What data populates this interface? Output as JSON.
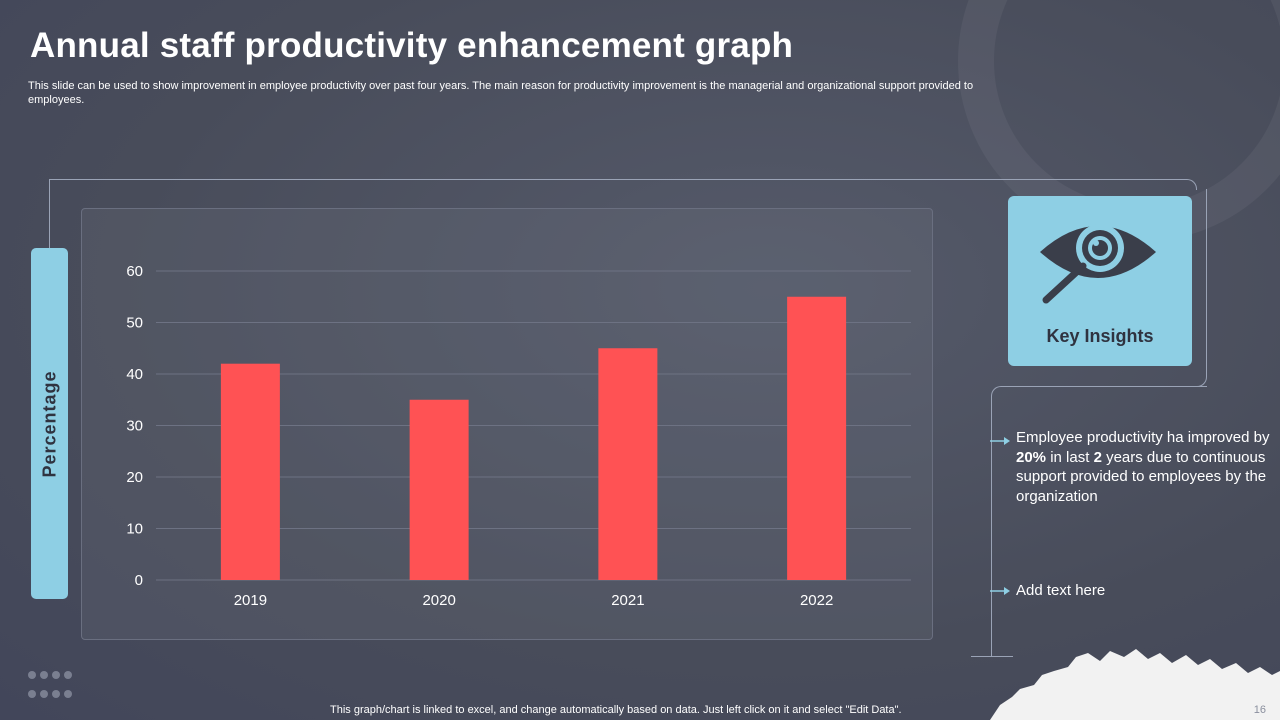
{
  "slide": {
    "title": "Annual staff productivity enhancement graph",
    "subtitle": "This slide can be used to show improvement in employee productivity over past four years. The main reason for productivity improvement is the managerial and organizational support provided to employees.",
    "footer_note": "This graph/chart is linked to excel,  and change automatically based on data. Just left click on it and select \"Edit Data\".",
    "page_number": "16"
  },
  "insights": {
    "title": "Key Insights",
    "icon": "eye-magnifier-icon",
    "bullet1": {
      "p1": "Employee productivity ha improved by ",
      "highlight1": "20%",
      "p2": " in last ",
      "highlight2": "2",
      "p3": " years due to continuous support  provided to employees by the organization"
    },
    "bullet2": "Add text here"
  },
  "colors": {
    "background": "#4b4f5e",
    "bar": "#ff5254",
    "accent": "#8ecfe4",
    "dark_text": "#2f3340"
  },
  "chart_data": {
    "type": "bar",
    "categories": [
      "2019",
      "2020",
      "2021",
      "2022"
    ],
    "values": [
      42,
      35,
      45,
      55
    ],
    "ylabel": "Percentage",
    "xlabel": "",
    "title": "",
    "ylim": [
      0,
      60
    ],
    "yticks": [
      0,
      10,
      20,
      30,
      40,
      50,
      60
    ],
    "grid": true
  }
}
